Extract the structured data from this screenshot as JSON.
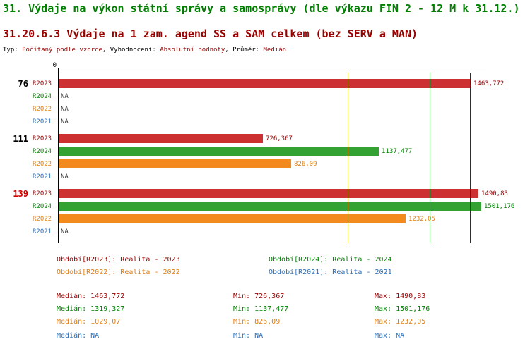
{
  "page": {
    "title": "31. Výdaje na výkon státní správy a samosprávy (dle výkazu FIN 2 - 12 M k 31.12.)",
    "subtitle": "31.20.6.3 Výdaje na 1 zam. agend SS a SAM celkem (bez SERV a MAN)",
    "meta_segments": [
      {
        "text": "Typ: ",
        "color": "#000000"
      },
      {
        "text": "Počítaný podle vzorce",
        "color": "#990000"
      },
      {
        "text": ", ",
        "color": "#000000"
      },
      {
        "text": "Vyhodnocení: ",
        "color": "#000000"
      },
      {
        "text": "Absolutní hodnoty",
        "color": "#990000"
      },
      {
        "text": ", ",
        "color": "#000000"
      },
      {
        "text": "Průměr: ",
        "color": "#000000"
      },
      {
        "text": "Medián",
        "color": "#990000"
      }
    ]
  },
  "colors": {
    "title": "#007f00",
    "subtitle": "#990000",
    "axis": "#000000",
    "na_text": "#333333",
    "series": {
      "R2023": {
        "bar": "#cc3030",
        "text": "#990000",
        "median_line": "#990000"
      },
      "R2024": {
        "bar": "#33a233",
        "text": "#007f00",
        "median_line": "#1d7a1d"
      },
      "R2022": {
        "bar": "#f28a1e",
        "text": "#e07e12",
        "median_line": "#b8860b"
      },
      "R2021": {
        "bar": "#2a6fba",
        "text": "#2a6fba",
        "median_line": "#2a6fba"
      }
    }
  },
  "chart_data": {
    "type": "bar",
    "orientation": "horizontal",
    "x_axis": {
      "zero_label": "0",
      "min": 0,
      "max": 1516
    },
    "na_label": "NA",
    "series_order": [
      "R2023",
      "R2024",
      "R2022",
      "R2021"
    ],
    "groups": [
      {
        "label": "76",
        "label_color": "#000000",
        "values": {
          "R2023": 1463.772,
          "R2024": null,
          "R2022": null,
          "R2021": null
        },
        "displays": {
          "R2023": "1463,772",
          "R2024": "NA",
          "R2022": "NA",
          "R2021": "NA"
        }
      },
      {
        "label": "111",
        "label_color": "#000000",
        "values": {
          "R2023": 726.367,
          "R2024": 1137.477,
          "R2022": 826.09,
          "R2021": null
        },
        "displays": {
          "R2023": "726,367",
          "R2024": "1137,477",
          "R2022": "826,09",
          "R2021": "NA"
        }
      },
      {
        "label": "139",
        "label_color": "#cc0000",
        "values": {
          "R2023": 1490.83,
          "R2024": 1501.176,
          "R2022": 1232.05,
          "R2021": null
        },
        "displays": {
          "R2023": "1490,83",
          "R2024": "1501,176",
          "R2022": "1232,05",
          "R2021": "NA"
        }
      }
    ],
    "median_lines": [
      {
        "series": "R2022",
        "value": 1029.07
      },
      {
        "series": "R2024",
        "value": 1319.327
      },
      {
        "series": "R2023",
        "value": 1463.772
      }
    ]
  },
  "legend": {
    "items": [
      {
        "text": "Období[R2023]: Realita - 2023",
        "color": "#990000"
      },
      {
        "text": "Období[R2024]: Realita - 2024",
        "color": "#007f00"
      },
      {
        "text": "Období[R2022]: Realita - 2022",
        "color": "#e07e12"
      },
      {
        "text": "Období[R2021]: Realita - 2021",
        "color": "#2a6fba"
      }
    ]
  },
  "stats": {
    "rows": [
      {
        "color": "#990000",
        "median": "Medián: 1463,772",
        "min": "Min: 726,367",
        "max": "Max: 1490,83"
      },
      {
        "color": "#007f00",
        "median": "Medián: 1319,327",
        "min": "Min: 1137,477",
        "max": "Max: 1501,176"
      },
      {
        "color": "#e07e12",
        "median": "Medián: 1029,07",
        "min": "Min: 826,09",
        "max": "Max: 1232,05"
      },
      {
        "color": "#2a6fba",
        "median": "Medián: NA",
        "min": "Min: NA",
        "max": "Max: NA"
      }
    ]
  }
}
